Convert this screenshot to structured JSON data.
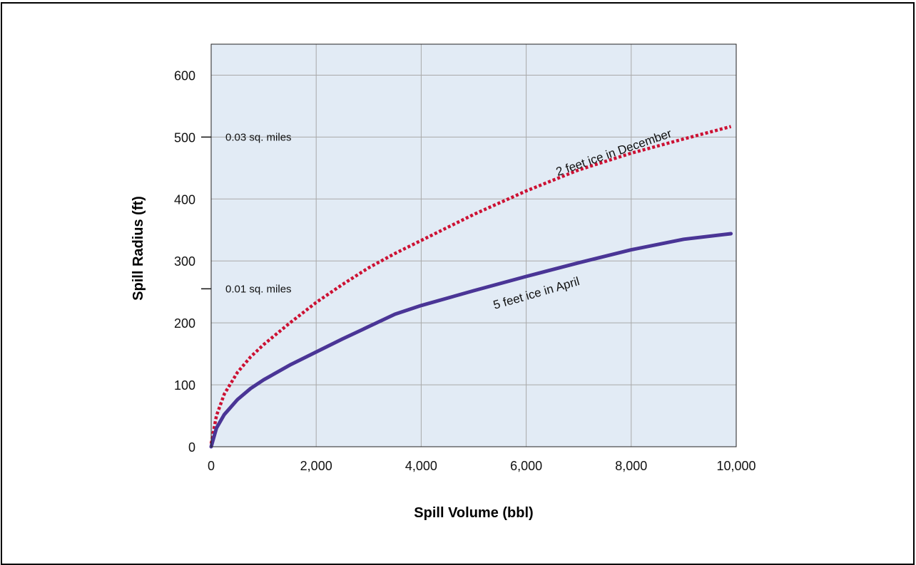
{
  "chart_data": {
    "type": "line",
    "title": "",
    "xlabel": "Spill Volume (bbl)",
    "ylabel": "Spill Radius (ft)",
    "xlim": [
      0,
      10000
    ],
    "ylim": [
      0,
      650
    ],
    "x_ticks": [
      0,
      2000,
      4000,
      6000,
      8000,
      10000
    ],
    "x_tick_labels": [
      "0",
      "2,000",
      "4,000",
      "6,000",
      "8,000",
      "10,000"
    ],
    "y_ticks": [
      0,
      100,
      200,
      300,
      400,
      500,
      600
    ],
    "y_tick_labels": [
      "0",
      "100",
      "200",
      "300",
      "400",
      "500",
      "600"
    ],
    "grid": true,
    "colors": {
      "plot_background": "#e2ebf5",
      "grid": "#a9a9a9",
      "series_dec": "#cc1133",
      "series_apr": "#4a3596"
    },
    "series": [
      {
        "name": "2 feet ice in December",
        "style": "dotted",
        "color": "#cc1133",
        "x": [
          0,
          100,
          250,
          500,
          750,
          1000,
          1500,
          2000,
          2500,
          3000,
          3500,
          4000,
          5000,
          6000,
          7000,
          8000,
          9000,
          9900
        ],
        "y": [
          5,
          50,
          85,
          120,
          145,
          165,
          200,
          233,
          262,
          289,
          312,
          333,
          375,
          413,
          447,
          474,
          497,
          517
        ]
      },
      {
        "name": "5 feet ice in April",
        "style": "solid",
        "color": "#4a3596",
        "x": [
          0,
          100,
          250,
          500,
          750,
          1000,
          1500,
          2000,
          2500,
          3000,
          3500,
          4000,
          5000,
          6000,
          7000,
          8000,
          9000,
          9900
        ],
        "y": [
          0,
          30,
          52,
          76,
          94,
          108,
          132,
          153,
          174,
          194,
          214,
          228,
          252,
          275,
          297,
          318,
          335,
          344
        ]
      }
    ],
    "annotations": [
      {
        "text": "0.03 sq. miles",
        "y": 500
      },
      {
        "text": "0.01 sq. miles",
        "y": 255
      }
    ]
  }
}
